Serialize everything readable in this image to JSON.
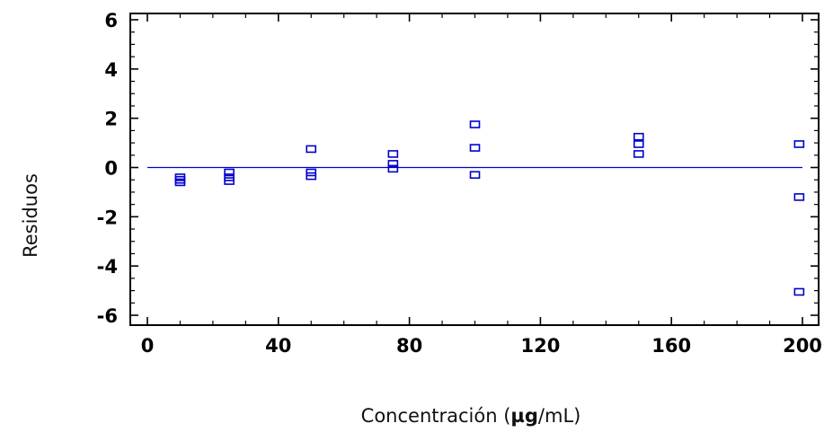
{
  "chart_data": {
    "type": "scatter",
    "title": "",
    "xlabel_parts": [
      "Concentración (",
      "µg",
      "/mL)"
    ],
    "ylabel": "Residuos",
    "xlim": [
      0,
      200
    ],
    "ylim": [
      -6,
      6
    ],
    "xticks": [
      0,
      40,
      80,
      120,
      160,
      200
    ],
    "xtick_labels": [
      "0",
      "40",
      "80",
      "120",
      "160",
      "200"
    ],
    "yticks": [
      -6,
      -4,
      -2,
      0,
      2,
      4,
      6
    ],
    "ytick_labels": [
      "-6",
      "-4",
      "-2",
      "0",
      "2",
      "4",
      "6"
    ],
    "reference_line_y": 0,
    "grid": false,
    "marker": "square",
    "colors": {
      "points": "#0000cc",
      "reference_line": "#0000cc",
      "frame": "#000000"
    },
    "series": [
      {
        "x": [
          10,
          10,
          10,
          25,
          25,
          25,
          50,
          50,
          50,
          75,
          75,
          75,
          100,
          100,
          100,
          150,
          150,
          150,
          199,
          199,
          199
        ],
        "y": [
          -0.4,
          -0.5,
          -0.6,
          -0.2,
          -0.4,
          -0.55,
          0.75,
          -0.2,
          -0.35,
          0.55,
          0.15,
          -0.05,
          1.75,
          0.8,
          -0.3,
          1.25,
          0.95,
          0.55,
          0.95,
          -1.2,
          -5.05
        ]
      }
    ]
  }
}
